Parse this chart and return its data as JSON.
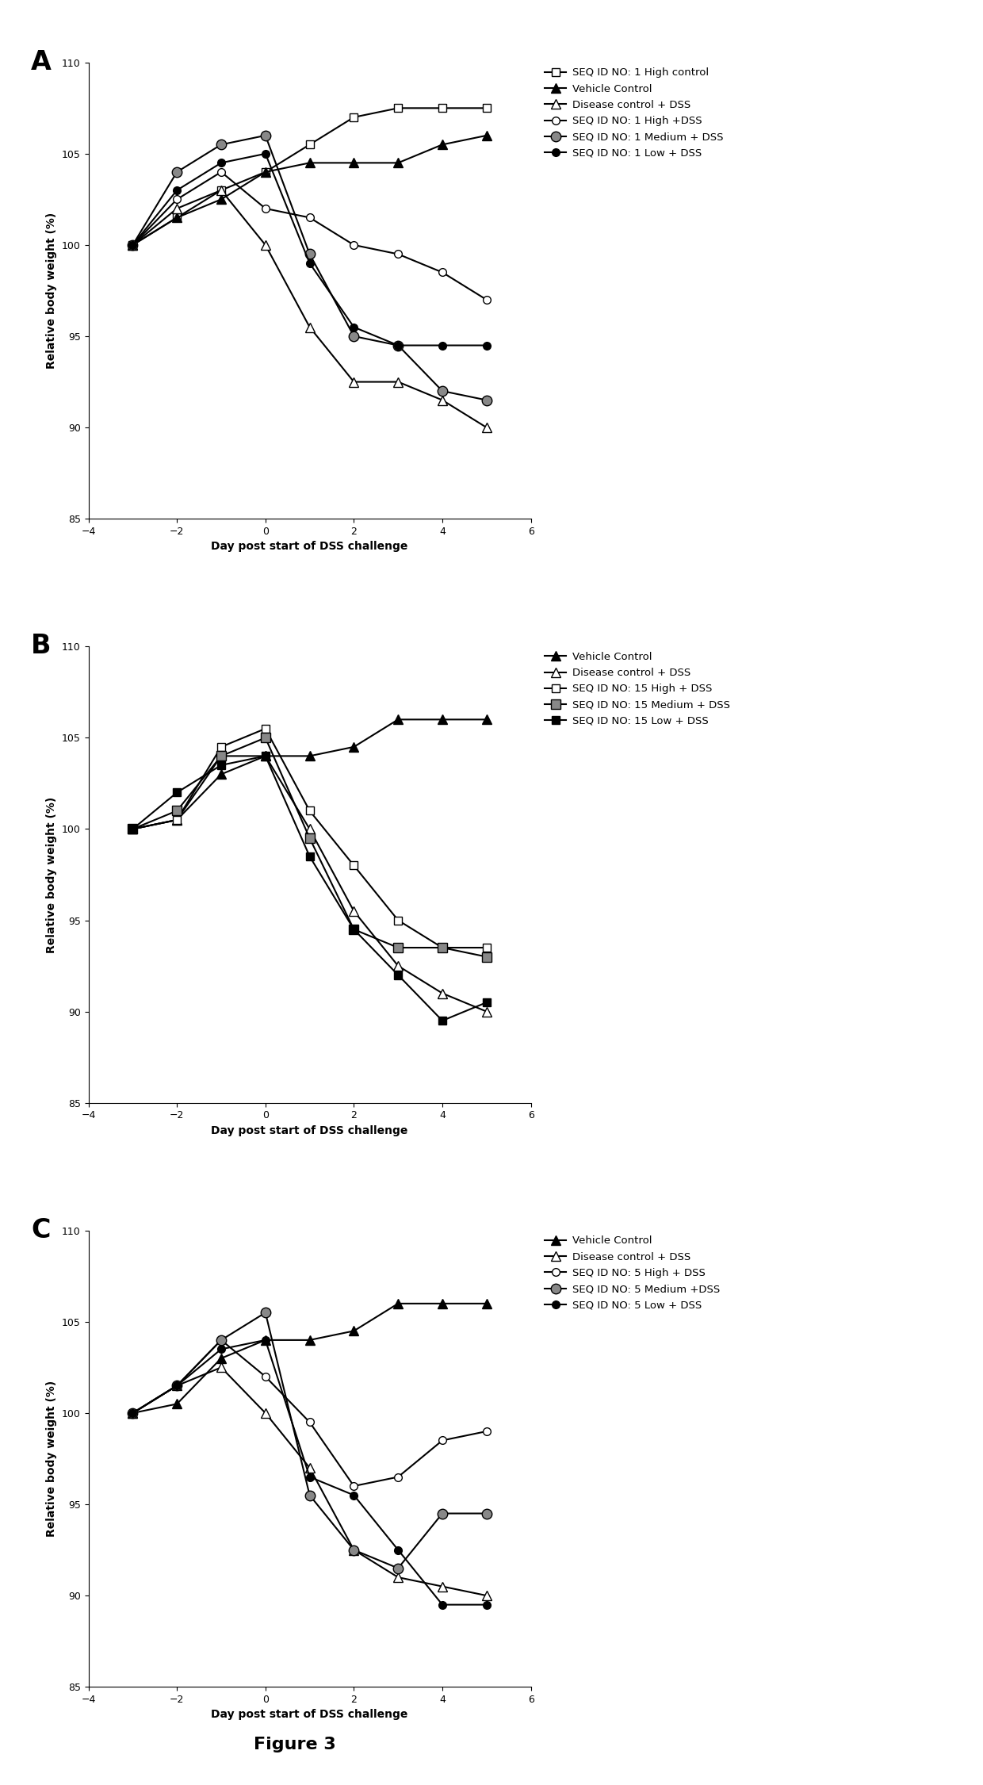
{
  "panel_A": {
    "x": [
      -3,
      -2,
      -1,
      0,
      1,
      2,
      3,
      4,
      5
    ],
    "series": [
      {
        "name": "SEQ ID NO: 1 High control",
        "y": [
          100,
          101.5,
          103.0,
          104.0,
          105.5,
          107.0,
          107.5,
          107.5,
          107.5
        ],
        "marker": "s",
        "mfc": "white",
        "ms": 7
      },
      {
        "name": "Vehicle Control",
        "y": [
          100,
          101.5,
          102.5,
          104.0,
          104.5,
          104.5,
          104.5,
          105.5,
          106.0
        ],
        "marker": "^",
        "mfc": "black",
        "ms": 8
      },
      {
        "name": "Disease control + DSS",
        "y": [
          100,
          102.0,
          103.0,
          100.0,
          95.5,
          92.5,
          92.5,
          91.5,
          90.0
        ],
        "marker": "^",
        "mfc": "white",
        "ms": 8
      },
      {
        "name": "SEQ ID NO: 1 High +DSS",
        "y": [
          100,
          102.5,
          104.0,
          102.0,
          101.5,
          100.0,
          99.5,
          98.5,
          97.0
        ],
        "marker": "o",
        "mfc": "white",
        "ms": 7
      },
      {
        "name": "SEQ ID NO: 1 Medium + DSS",
        "y": [
          100,
          104.0,
          105.5,
          106.0,
          99.5,
          95.0,
          94.5,
          92.0,
          91.5
        ],
        "marker": "o",
        "mfc": "gray",
        "ms": 9
      },
      {
        "name": "SEQ ID NO: 1 Low + DSS",
        "y": [
          100,
          103.0,
          104.5,
          105.0,
          99.0,
          95.5,
          94.5,
          94.5,
          94.5
        ],
        "marker": "o",
        "mfc": "black",
        "ms": 7
      }
    ]
  },
  "panel_B": {
    "x": [
      -3,
      -2,
      -1,
      0,
      1,
      2,
      3,
      4,
      5
    ],
    "series": [
      {
        "name": "Vehicle Control",
        "y": [
          100,
          100.5,
          103.0,
          104.0,
          104.0,
          104.5,
          106.0,
          106.0,
          106.0
        ],
        "marker": "^",
        "mfc": "black",
        "ms": 8
      },
      {
        "name": "Disease control + DSS",
        "y": [
          100,
          100.5,
          104.0,
          104.0,
          100.0,
          95.5,
          92.5,
          91.0,
          90.0
        ],
        "marker": "^",
        "mfc": "white",
        "ms": 8
      },
      {
        "name": "SEQ ID NO: 15 High + DSS",
        "y": [
          100,
          100.5,
          104.5,
          105.5,
          101.0,
          98.0,
          95.0,
          93.5,
          93.5
        ],
        "marker": "s",
        "mfc": "white",
        "ms": 7
      },
      {
        "name": "SEQ ID NO: 15 Medium + DSS",
        "y": [
          100,
          101.0,
          104.0,
          105.0,
          99.5,
          94.5,
          93.5,
          93.5,
          93.0
        ],
        "marker": "s",
        "mfc": "gray",
        "ms": 9
      },
      {
        "name": "SEQ ID NO: 15 Low + DSS",
        "y": [
          100,
          102.0,
          103.5,
          104.0,
          98.5,
          94.5,
          92.0,
          89.5,
          90.5
        ],
        "marker": "s",
        "mfc": "black",
        "ms": 7
      }
    ]
  },
  "panel_C": {
    "x": [
      -3,
      -2,
      -1,
      0,
      1,
      2,
      3,
      4,
      5
    ],
    "series": [
      {
        "name": "Vehicle Control",
        "y": [
          100,
          100.5,
          103.0,
          104.0,
          104.0,
          104.5,
          106.0,
          106.0,
          106.0
        ],
        "marker": "^",
        "mfc": "black",
        "ms": 8
      },
      {
        "name": "Disease control + DSS",
        "y": [
          100,
          101.5,
          102.5,
          100.0,
          97.0,
          92.5,
          91.0,
          90.5,
          90.0
        ],
        "marker": "^",
        "mfc": "white",
        "ms": 8
      },
      {
        "name": "SEQ ID NO: 5 High + DSS",
        "y": [
          100,
          101.5,
          104.0,
          102.0,
          99.5,
          96.0,
          96.5,
          98.5,
          99.0
        ],
        "marker": "o",
        "mfc": "white",
        "ms": 7
      },
      {
        "name": "SEQ ID NO: 5 Medium +DSS",
        "y": [
          100,
          101.5,
          104.0,
          105.5,
          95.5,
          92.5,
          91.5,
          94.5,
          94.5
        ],
        "marker": "o",
        "mfc": "gray",
        "ms": 9
      },
      {
        "name": "SEQ ID NO: 5 Low + DSS",
        "y": [
          100,
          101.5,
          103.5,
          104.0,
          96.5,
          95.5,
          92.5,
          89.5,
          89.5
        ],
        "marker": "o",
        "mfc": "black",
        "ms": 7
      }
    ]
  },
  "ylim": [
    85,
    110
  ],
  "xlim": [
    -4,
    6
  ],
  "xlabel": "Day post start of DSS challenge",
  "ylabel": "Relative body weight (%)",
  "yticks": [
    85,
    90,
    95,
    100,
    105,
    110
  ],
  "xticks": [
    -4,
    -2,
    0,
    2,
    4,
    6
  ],
  "panel_labels": [
    "A",
    "B",
    "C"
  ],
  "legend_A": [
    {
      "name": "SEQ ID NO: 1 High control",
      "marker": "s",
      "mfc": "white"
    },
    {
      "name": "Vehicle Control",
      "marker": "^",
      "mfc": "black"
    },
    {
      "name": "Disease control + DSS",
      "marker": "^",
      "mfc": "white"
    },
    {
      "name": "SEQ ID NO: 1 High +DSS",
      "marker": "o",
      "mfc": "white"
    },
    {
      "name": "SEQ ID NO: 1 Medium + DSS",
      "marker": "o",
      "mfc": "gray"
    },
    {
      "name": "SEQ ID NO: 1 Low + DSS",
      "marker": "o",
      "mfc": "black"
    }
  ],
  "legend_B": [
    {
      "name": "Vehicle Control",
      "marker": "^",
      "mfc": "black"
    },
    {
      "name": "Disease control + DSS",
      "marker": "^",
      "mfc": "white"
    },
    {
      "name": "SEQ ID NO: 15 High + DSS",
      "marker": "s",
      "mfc": "white"
    },
    {
      "name": "SEQ ID NO: 15 Medium + DSS",
      "marker": "s",
      "mfc": "gray"
    },
    {
      "name": "SEQ ID NO: 15 Low + DSS",
      "marker": "s",
      "mfc": "black"
    }
  ],
  "legend_C": [
    {
      "name": "Vehicle Control",
      "marker": "^",
      "mfc": "black"
    },
    {
      "name": "Disease control + DSS",
      "marker": "^",
      "mfc": "white"
    },
    {
      "name": "SEQ ID NO: 5 High + DSS",
      "marker": "o",
      "mfc": "white"
    },
    {
      "name": "SEQ ID NO: 5 Medium +DSS",
      "marker": "o",
      "mfc": "gray"
    },
    {
      "name": "SEQ ID NO: 5 Low + DSS",
      "marker": "o",
      "mfc": "black"
    }
  ]
}
